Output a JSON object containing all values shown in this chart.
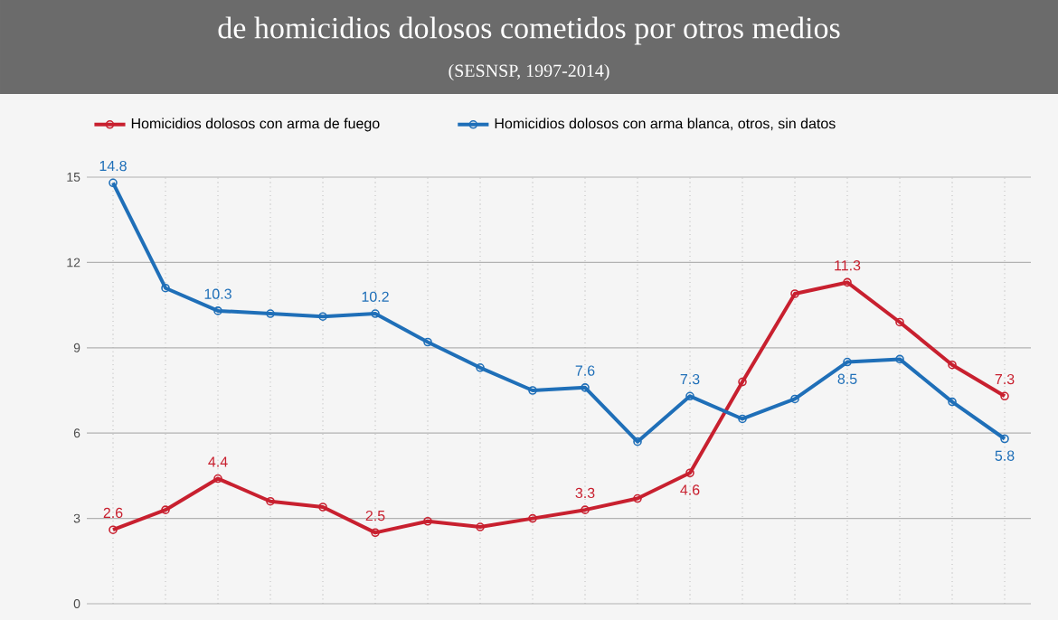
{
  "chart_data": {
    "type": "line",
    "title": "de homicidios dolosos cometidos por otros medios",
    "subtitle": "(SESNSP, 1997-2014)",
    "categories": [
      null,
      null,
      null,
      null,
      null,
      null,
      null,
      null,
      null,
      null,
      null,
      null,
      null,
      null,
      null,
      null,
      null,
      null
    ],
    "series": [
      {
        "name": "Homicidios dolosos con arma de fuego",
        "color": "#c8202f",
        "values": [
          2.6,
          3.3,
          4.4,
          3.6,
          3.4,
          2.5,
          2.9,
          2.7,
          3.0,
          3.3,
          3.7,
          4.6,
          7.8,
          10.9,
          11.3,
          9.9,
          8.4,
          7.3
        ],
        "value_labels": [
          "2.6",
          null,
          "4.4",
          null,
          null,
          "2.5",
          null,
          null,
          null,
          "3.3",
          null,
          "4.6",
          null,
          null,
          "11.3",
          null,
          null,
          "7.3"
        ]
      },
      {
        "name": "Homicidios dolosos con arma blanca, otros, sin datos",
        "color": "#1f6fb8",
        "values": [
          14.8,
          11.1,
          10.3,
          10.2,
          10.1,
          10.2,
          9.2,
          8.3,
          7.5,
          7.6,
          5.7,
          7.3,
          6.5,
          7.2,
          8.5,
          8.6,
          7.1,
          5.8
        ],
        "value_labels": [
          "14.8",
          null,
          "10.3",
          null,
          null,
          "10.2",
          null,
          null,
          null,
          "7.6",
          null,
          "7.3",
          null,
          null,
          "8.5",
          null,
          null,
          "5.8"
        ]
      }
    ],
    "ylim": [
      0,
      15
    ],
    "yticks": [
      0,
      3,
      6,
      9,
      12,
      15
    ],
    "grid": true,
    "legend": "top left",
    "marker": "circle",
    "line_style": "solid",
    "tick_labels": "y"
  }
}
